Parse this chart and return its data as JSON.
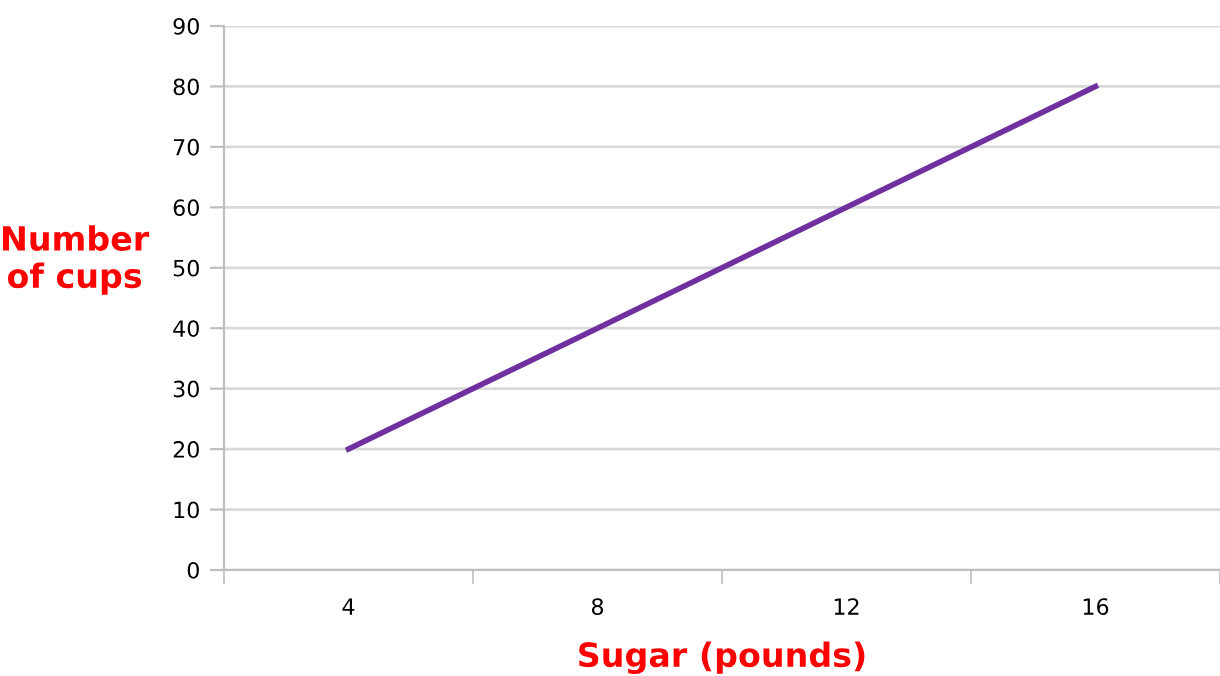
{
  "chart_data": {
    "type": "line",
    "xlabel": "Sugar (pounds)",
    "ylabel": "Number\nof cups",
    "categories": [
      "4",
      "8",
      "12",
      "16"
    ],
    "series": [
      {
        "color": "#7030a0",
        "values": [
          20,
          40,
          60,
          80
        ]
      }
    ],
    "ylim": [
      0,
      90
    ],
    "yticks": [
      0,
      10,
      20,
      30,
      40,
      50,
      60,
      70,
      80,
      90
    ],
    "grid": "y",
    "marker": "none",
    "line_style": "solid"
  }
}
